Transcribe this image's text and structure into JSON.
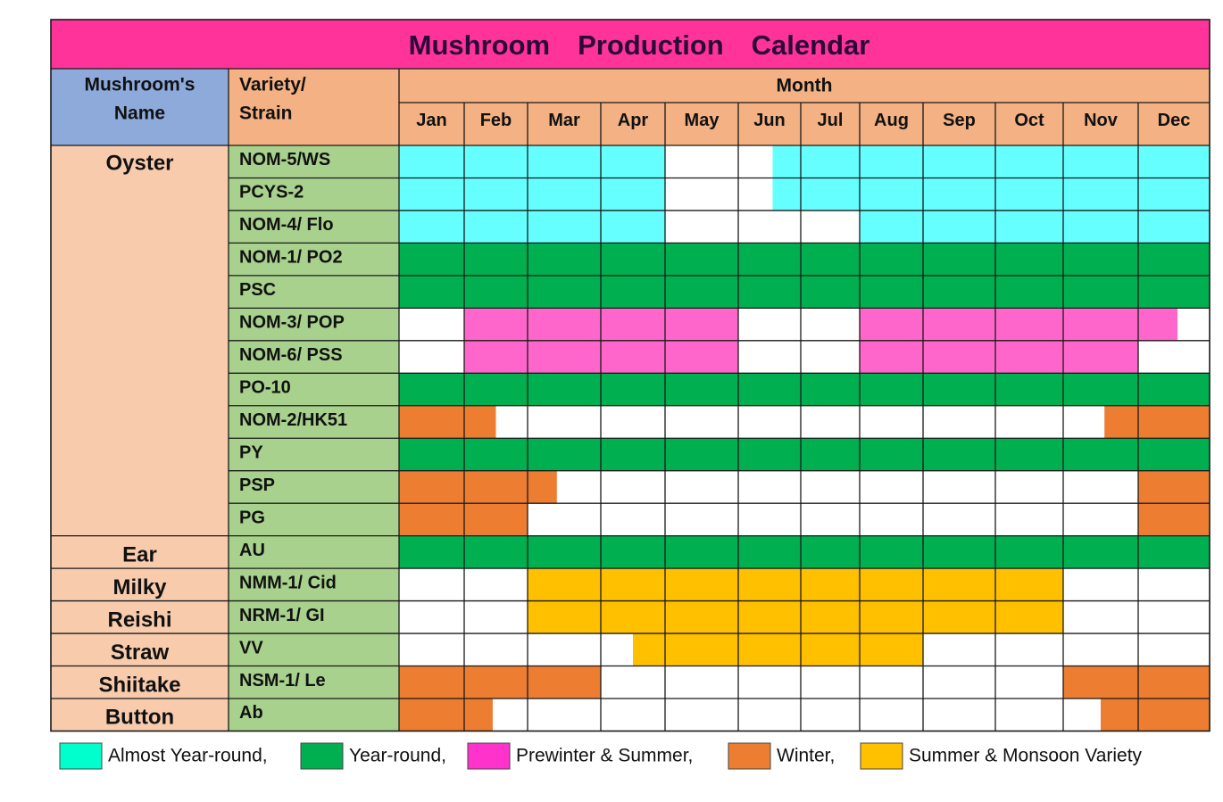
{
  "chart_data": {
    "type": "table",
    "title": "Mushroom Production Calendar",
    "header": {
      "name_col": [
        "Mushroom's",
        "Name"
      ],
      "strain_col": [
        "Variety/",
        "Strain"
      ],
      "month_group": "Month"
    },
    "months": [
      "Jan",
      "Feb",
      "Mar",
      "Apr",
      "May",
      "Jun",
      "Jul",
      "Aug",
      "Sep",
      "Oct",
      "Nov",
      "Dec"
    ],
    "categories": {
      "A": {
        "label": "Almost Year-round,",
        "color": "#66ffff"
      },
      "Y": {
        "label": "Year-round,",
        "color": "#00b050"
      },
      "P": {
        "label": "Prewinter & Summer,",
        "color": "#ff66cc"
      },
      "W": {
        "label": "Winter,",
        "color": "#ed7d31"
      },
      "S": {
        "label": "Summer & Monsoon  Variety",
        "color": "#ffc000"
      }
    },
    "legend": [
      {
        "key": "A",
        "label": "Almost Year-round,",
        "swatch": "#00ffcc"
      },
      {
        "key": "Y",
        "label": "Year-round,",
        "swatch": "#00b050"
      },
      {
        "key": "P",
        "label": "Prewinter & Summer,",
        "swatch": "#ff33cc"
      },
      {
        "key": "W",
        "label": "Winter,",
        "swatch": "#ed7d31"
      },
      {
        "key": "S",
        "label": "Summer & Monsoon  Variety",
        "swatch": "#ffc000"
      }
    ],
    "groups": [
      {
        "name": "Oyster",
        "rows": [
          {
            "strain": "NOM-5/WS",
            "months": [
              "A",
              "A",
              "A",
              "A",
              "",
              "0.55A",
              "A",
              "A",
              "A",
              "A",
              "A",
              "A"
            ]
          },
          {
            "strain": "PCYS-2",
            "months": [
              "A",
              "A",
              "A",
              "A",
              "",
              "0.55A",
              "A",
              "A",
              "A",
              "A",
              "A",
              "A"
            ]
          },
          {
            "strain": "NOM-4/ Flo",
            "months": [
              "A",
              "A",
              "A",
              "A",
              "",
              "",
              "",
              "A",
              "A",
              "A",
              "A",
              "A"
            ]
          },
          {
            "strain": "NOM-1/ PO2",
            "months": [
              "Y",
              "Y",
              "Y",
              "Y",
              "Y",
              "Y",
              "Y",
              "Y",
              "Y",
              "Y",
              "Y",
              "Y"
            ]
          },
          {
            "strain": "PSC",
            "months": [
              "Y",
              "Y",
              "Y",
              "Y",
              "Y",
              "Y",
              "Y",
              "Y",
              "Y",
              "Y",
              "Y",
              "Y"
            ]
          },
          {
            "strain": "NOM-3/ POP",
            "months": [
              "",
              "P",
              "P",
              "P",
              "P",
              "",
              "",
              "P",
              "P",
              "P",
              "P",
              "P0.55"
            ]
          },
          {
            "strain": "NOM-6/ PSS",
            "months": [
              "",
              "P",
              "P",
              "P",
              "P",
              "",
              "",
              "P",
              "P",
              "P",
              "P",
              ""
            ]
          },
          {
            "strain": "PO-10",
            "months": [
              "Y",
              "Y",
              "Y",
              "Y",
              "Y",
              "Y",
              "Y",
              "Y",
              "Y",
              "Y",
              "Y",
              "Y"
            ]
          },
          {
            "strain": "NOM-2/HK51",
            "months": [
              "W",
              "W0.5",
              "",
              "",
              "",
              "",
              "",
              "",
              "",
              "",
              "0.55W",
              "W"
            ]
          },
          {
            "strain": "PY",
            "months": [
              "Y",
              "Y",
              "Y",
              "Y",
              "Y",
              "Y",
              "Y",
              "Y",
              "Y",
              "Y",
              "Y",
              "Y"
            ]
          },
          {
            "strain": "PSP",
            "months": [
              "W",
              "W",
              "W0.4",
              "",
              "",
              "",
              "",
              "",
              "",
              "",
              "",
              "W"
            ]
          },
          {
            "strain": "PG",
            "months": [
              "W",
              "W",
              "",
              "",
              "",
              "",
              "",
              "",
              "",
              "",
              "",
              "W"
            ]
          }
        ]
      },
      {
        "name": "Ear",
        "rows": [
          {
            "strain": "AU",
            "months": [
              "Y",
              "Y",
              "Y",
              "Y",
              "Y",
              "Y",
              "Y",
              "Y",
              "Y",
              "Y",
              "Y",
              "Y"
            ]
          }
        ]
      },
      {
        "name": "Milky",
        "rows": [
          {
            "strain": "NMM-1/ Cid",
            "months": [
              "",
              "",
              "S",
              "S",
              "S",
              "S",
              "S",
              "S",
              "S",
              "S",
              "",
              ""
            ]
          }
        ]
      },
      {
        "name": "Reishi",
        "rows": [
          {
            "strain": "NRM-1/ GI",
            "months": [
              "",
              "",
              "S",
              "S",
              "S",
              "S",
              "S",
              "S",
              "S",
              "S",
              "",
              ""
            ]
          }
        ]
      },
      {
        "name": "Straw",
        "rows": [
          {
            "strain": "VV",
            "months": [
              "",
              "",
              "",
              "0.5S",
              "S",
              "S",
              "S",
              "S",
              "",
              "",
              "",
              ""
            ]
          }
        ]
      },
      {
        "name": "Shiitake",
        "rows": [
          {
            "strain": "NSM-1/ Le",
            "months": [
              "W",
              "W",
              "W",
              "",
              "",
              "",
              "",
              "",
              "",
              "",
              "W",
              "W"
            ]
          }
        ]
      },
      {
        "name": "Button",
        "rows": [
          {
            "strain": "Ab",
            "months": [
              "W",
              "W0.45",
              "",
              "",
              "",
              "",
              "",
              "",
              "",
              "",
              "0.5W",
              "W"
            ]
          }
        ]
      }
    ]
  },
  "colors": {
    "title_bg": "#ff3399",
    "name_header_bg": "#8eaadb",
    "strain_header_bg": "#f4b183",
    "month_header_bg": "#f4b183",
    "name_col_bg": "#f8cbad",
    "strain_col_bg": "#a9d18e",
    "grid": "#1a1a1a"
  }
}
